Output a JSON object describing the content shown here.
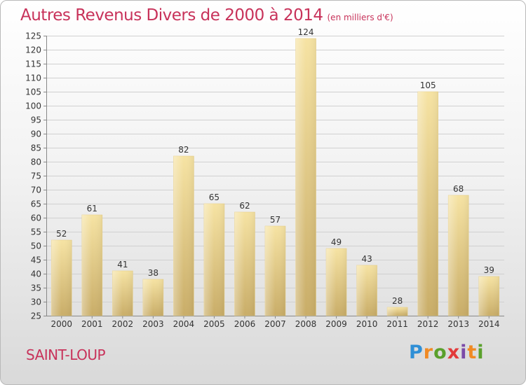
{
  "header": {
    "title": "Autres Revenus Divers de 2000 à 2014",
    "unit": "(en milliers d'€)"
  },
  "footer": {
    "place": "SAINT-LOUP",
    "logo_text": "Proxiti"
  },
  "colors": {
    "title": "#c8325a",
    "bar_light": "#f6e3a3",
    "bar_dark": "#c9ad68",
    "gridline": "#d0d0d0"
  },
  "chart_data": {
    "type": "bar",
    "categories": [
      "2000",
      "2001",
      "2002",
      "2003",
      "2004",
      "2005",
      "2006",
      "2007",
      "2008",
      "2009",
      "2010",
      "2011",
      "2012",
      "2013",
      "2014"
    ],
    "values": [
      52,
      61,
      41,
      38,
      82,
      65,
      62,
      57,
      124,
      49,
      43,
      28,
      105,
      68,
      39
    ],
    "title": "Autres Revenus Divers de 2000 à 2014",
    "subtitle": "(en milliers d'€)",
    "xlabel": "",
    "ylabel": "",
    "ylim": [
      25,
      125
    ],
    "yticks": [
      25,
      30,
      35,
      40,
      45,
      50,
      55,
      60,
      65,
      70,
      75,
      80,
      85,
      90,
      95,
      100,
      105,
      110,
      115,
      120,
      125
    ],
    "grid": true,
    "data_labels": true,
    "legend": "none"
  }
}
